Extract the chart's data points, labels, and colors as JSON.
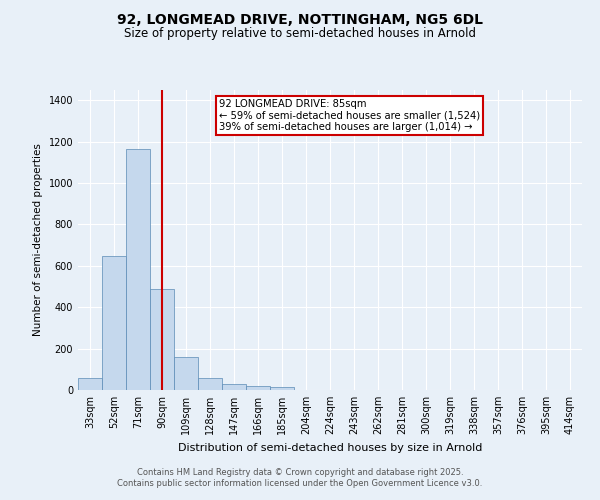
{
  "title_line1": "92, LONGMEAD DRIVE, NOTTINGHAM, NG5 6DL",
  "title_line2": "Size of property relative to semi-detached houses in Arnold",
  "xlabel": "Distribution of semi-detached houses by size in Arnold",
  "ylabel": "Number of semi-detached properties",
  "categories": [
    "33sqm",
    "52sqm",
    "71sqm",
    "90sqm",
    "109sqm",
    "128sqm",
    "147sqm",
    "166sqm",
    "185sqm",
    "204sqm",
    "224sqm",
    "243sqm",
    "262sqm",
    "281sqm",
    "300sqm",
    "319sqm",
    "338sqm",
    "357sqm",
    "376sqm",
    "395sqm",
    "414sqm"
  ],
  "values": [
    58,
    648,
    1165,
    490,
    160,
    58,
    28,
    18,
    13,
    0,
    0,
    0,
    0,
    0,
    0,
    0,
    0,
    0,
    0,
    0,
    0
  ],
  "bar_color": "#c5d8ed",
  "bar_edge_color": "#5a8ab5",
  "property_line_color": "#cc0000",
  "annotation_title": "92 LONGMEAD DRIVE: 85sqm",
  "annotation_line2": "← 59% of semi-detached houses are smaller (1,524)",
  "annotation_line3": "39% of semi-detached houses are larger (1,014) →",
  "annotation_box_color": "#ffffff",
  "annotation_box_edge": "#cc0000",
  "ylim": [
    0,
    1450
  ],
  "yticks": [
    0,
    200,
    400,
    600,
    800,
    1000,
    1200,
    1400
  ],
  "footer_line1": "Contains HM Land Registry data © Crown copyright and database right 2025.",
  "footer_line2": "Contains public sector information licensed under the Open Government Licence v3.0.",
  "bg_color": "#e8f0f8",
  "plot_bg_color": "#e8f0f8",
  "grid_color": "#ffffff"
}
